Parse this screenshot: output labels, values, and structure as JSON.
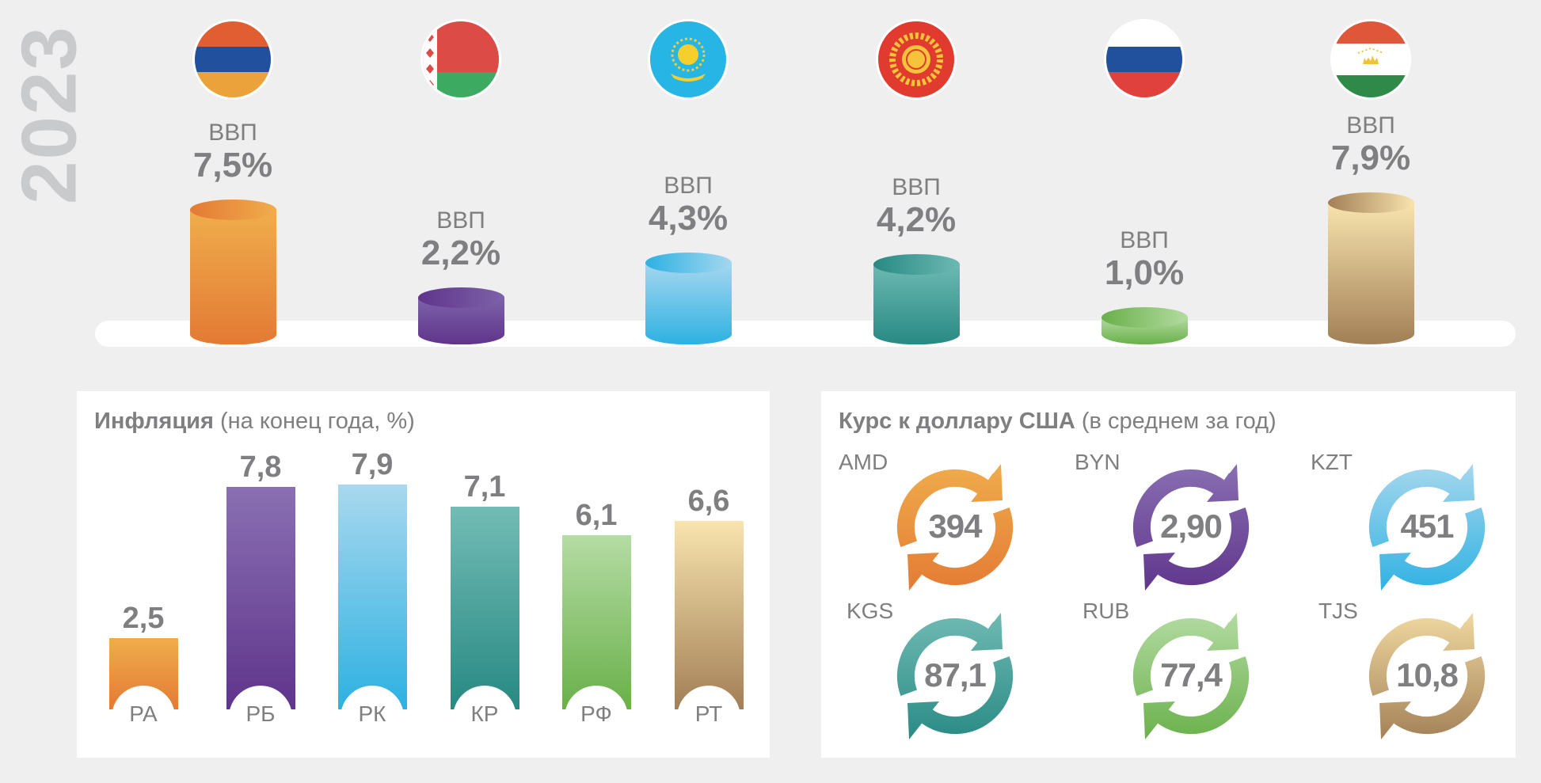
{
  "year": "2023",
  "gdp": {
    "label": "ВВП",
    "countries": [
      {
        "country": "Armenia",
        "value": 7.5,
        "text": "7,5%",
        "colors": [
          "#f0ad4c",
          "#e37a34"
        ]
      },
      {
        "country": "Belarus",
        "value": 2.2,
        "text": "2,2%",
        "colors": [
          "#7d62a9",
          "#5f348b"
        ]
      },
      {
        "country": "Kazakhstan",
        "value": 4.3,
        "text": "4,3%",
        "colors": [
          "#a5d7ef",
          "#2db1e2"
        ]
      },
      {
        "country": "Kyrgyzstan",
        "value": 4.2,
        "text": "4,2%",
        "colors": [
          "#6db9b3",
          "#288983"
        ]
      },
      {
        "country": "Russia",
        "value": 1.0,
        "text": "1,0%",
        "colors": [
          "#b3dba0",
          "#69b04a"
        ]
      },
      {
        "country": "Tajikistan",
        "value": 7.9,
        "text": "7,9%",
        "colors": [
          "#f8e4ae",
          "#a27f56"
        ]
      }
    ]
  },
  "inflation": {
    "title_bold": "Инфляция",
    "title_rest": " (на конец года, %)",
    "bars": [
      {
        "label": "РА",
        "value": 2.5,
        "text": "2,5",
        "colors": [
          "#f0ad4c",
          "#e37a34"
        ]
      },
      {
        "label": "РБ",
        "value": 7.8,
        "text": "7,8",
        "colors": [
          "#8a70b3",
          "#5f348b"
        ]
      },
      {
        "label": "РК",
        "value": 7.9,
        "text": "7,9",
        "colors": [
          "#a9d8ee",
          "#2db1e2"
        ]
      },
      {
        "label": "КР",
        "value": 7.1,
        "text": "7,1",
        "colors": [
          "#72bcb5",
          "#288983"
        ]
      },
      {
        "label": "РФ",
        "value": 6.1,
        "text": "6,1",
        "colors": [
          "#b5dca4",
          "#69b04a"
        ]
      },
      {
        "label": "РТ",
        "value": 6.6,
        "text": "6,6",
        "colors": [
          "#f8e4ae",
          "#a27f56"
        ]
      }
    ]
  },
  "chart_data": [
    {
      "type": "bar",
      "title": "ВВП 2023",
      "categories": [
        "Armenia",
        "Belarus",
        "Kazakhstan",
        "Kyrgyzstan",
        "Russia",
        "Tajikistan"
      ],
      "values": [
        7.5,
        2.2,
        4.3,
        4.2,
        1.0,
        7.9
      ],
      "unit": "%"
    },
    {
      "type": "bar",
      "title": "Инфляция (на конец года, %)",
      "categories": [
        "РА",
        "РБ",
        "РК",
        "КР",
        "РФ",
        "РТ"
      ],
      "values": [
        2.5,
        7.8,
        7.9,
        7.1,
        6.1,
        6.6
      ]
    },
    {
      "type": "table",
      "title": "Курс к доллару США (в среднем за год)",
      "categories": [
        "AMD",
        "BYN",
        "KZT",
        "KGS",
        "RUB",
        "TJS"
      ],
      "values": [
        394,
        2.9,
        451,
        87.1,
        77.4,
        10.8
      ]
    }
  ],
  "currency": {
    "title_bold": "Курс к доллару США",
    "title_rest": " (в среднем за год)",
    "items": [
      {
        "code": "AMD",
        "text": "394",
        "colors": [
          "#f0ad4c",
          "#e37a34"
        ]
      },
      {
        "code": "BYN",
        "text": "2,90",
        "colors": [
          "#8a70b3",
          "#5f348b"
        ]
      },
      {
        "code": "KZT",
        "text": "451",
        "colors": [
          "#a9d8ee",
          "#2db1e2"
        ]
      },
      {
        "code": "KGS",
        "text": "87,1",
        "colors": [
          "#72bcb5",
          "#288983"
        ]
      },
      {
        "code": "RUB",
        "text": "77,4",
        "colors": [
          "#b5dca4",
          "#69b04a"
        ]
      },
      {
        "code": "TJS",
        "text": "10,8",
        "colors": [
          "#f2dba2",
          "#a27f56"
        ]
      }
    ]
  }
}
